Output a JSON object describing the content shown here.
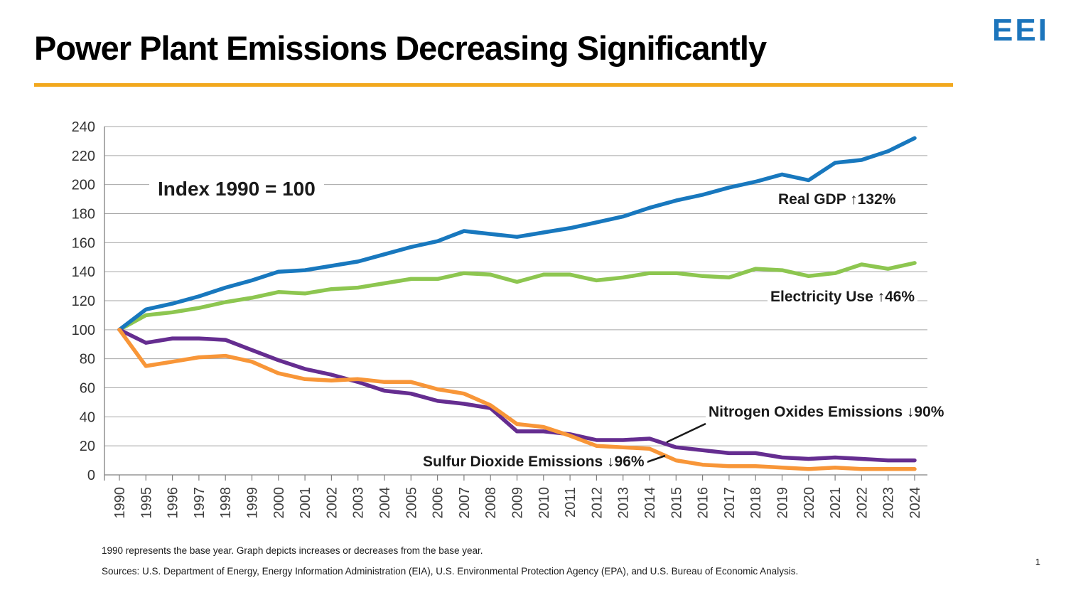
{
  "header": {
    "title": "Power Plant Emissions Decreasing Significantly",
    "logo_text": "EEI"
  },
  "colors": {
    "accent_rule": "#F2A81D",
    "logo_blue": "#1C75BC",
    "gridline": "#A6A6A6",
    "axis": "#808080"
  },
  "chart_data": {
    "type": "line",
    "annotation": "Index 1990 = 100",
    "categories": [
      "1990",
      "1995",
      "1996",
      "1997",
      "1998",
      "1999",
      "2000",
      "2001",
      "2002",
      "2003",
      "2004",
      "2005",
      "2006",
      "2007",
      "2008",
      "2009",
      "2010",
      "2011",
      "2012",
      "2013",
      "2014",
      "2015",
      "2016",
      "2017",
      "2018",
      "2019",
      "2020",
      "2021",
      "2022",
      "2023",
      "2024"
    ],
    "series": [
      {
        "id": "real_gdp",
        "name": "Real GDP",
        "label": "Real GDP ↑132%",
        "color": "#1878BE",
        "values": [
          100,
          114,
          118,
          123,
          129,
          134,
          140,
          141,
          144,
          147,
          152,
          157,
          161,
          168,
          166,
          164,
          167,
          170,
          174,
          178,
          184,
          189,
          193,
          198,
          202,
          207,
          203,
          215,
          217,
          223,
          232
        ]
      },
      {
        "id": "electricity_use",
        "name": "Electricity Use",
        "label": "Electricity Use ↑46%",
        "color": "#8DC650",
        "values": [
          100,
          110,
          112,
          115,
          119,
          122,
          126,
          125,
          128,
          129,
          132,
          135,
          135,
          139,
          138,
          133,
          138,
          138,
          134,
          136,
          139,
          139,
          137,
          136,
          142,
          141,
          137,
          139,
          145,
          142,
          146
        ]
      },
      {
        "id": "nitrogen_oxides",
        "name": "Nitrogen Oxides Emissions",
        "label": "Nitrogen Oxides Emissions ↓90%",
        "color": "#652D90",
        "values": [
          100,
          91,
          94,
          94,
          93,
          86,
          79,
          73,
          69,
          64,
          58,
          56,
          51,
          49,
          46,
          30,
          30,
          28,
          24,
          24,
          25,
          19,
          17,
          15,
          15,
          12,
          11,
          12,
          11,
          10,
          10
        ]
      },
      {
        "id": "sulfur_dioxide",
        "name": "Sulfur Dioxide Emissions",
        "label": "Sulfur Dioxide Emissions ↓96%",
        "color": "#F89638",
        "values": [
          100,
          75,
          78,
          81,
          82,
          78,
          70,
          66,
          65,
          66,
          64,
          64,
          59,
          56,
          48,
          35,
          33,
          27,
          20,
          19,
          18,
          10,
          7,
          6,
          6,
          5,
          4,
          5,
          4,
          4,
          4
        ]
      }
    ],
    "ylim": [
      0,
      240
    ],
    "ytick_step": 20,
    "grid": true,
    "legend_position": "inline-annotations"
  },
  "footer": {
    "note": "1990 represents the base year. Graph depicts increases or decreases from the base year.",
    "sources": "Sources: U.S. Department of Energy, Energy Information Administration (EIA), U.S. Environmental Protection Agency (EPA), and U.S. Bureau of Economic Analysis.",
    "page_number": "1"
  }
}
